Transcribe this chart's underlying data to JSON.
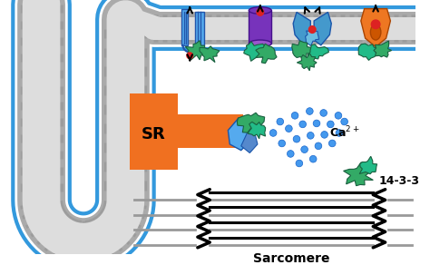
{
  "bg_color": "#ffffff",
  "membrane_dots_color": "#3399dd",
  "membrane_inner_color": "#cccccc",
  "sr_color": "#f07020",
  "sr_label": "SR",
  "ca_label": "Ca",
  "label_1433": "14-3-3",
  "sarcomere_label": "Sarcomere",
  "protein_blue": "#55aaee",
  "protein_blue_dark": "#3366cc",
  "protein_purple": "#7733bb",
  "protein_blue2": "#4499cc",
  "protein_orange": "#ee7722",
  "protein_green": "#33aa66",
  "protein_teal": "#22bb88",
  "red_dot": "#dd2222",
  "ca_dot_color": "#4499ee",
  "sarcomere_line_color": "#111111",
  "sarcomere_gray_color": "#999999",
  "figsize": [
    4.74,
    2.92
  ],
  "dpi": 100
}
